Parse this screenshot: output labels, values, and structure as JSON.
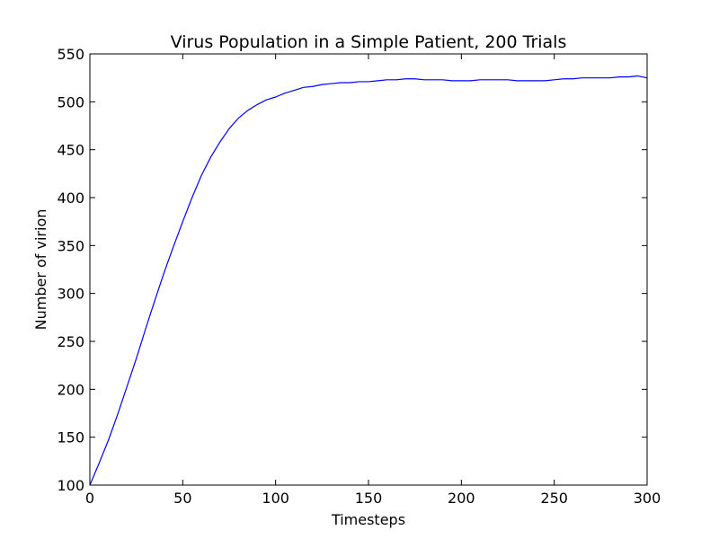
{
  "chart_data": {
    "type": "line",
    "title": "Virus Population in a Simple Patient, 200 Trials",
    "xlabel": "Timesteps",
    "ylabel": "Number of virion",
    "xlim": [
      0,
      300
    ],
    "ylim": [
      100,
      550
    ],
    "xticks": [
      0,
      50,
      100,
      150,
      200,
      250,
      300
    ],
    "yticks": [
      100,
      150,
      200,
      250,
      300,
      350,
      400,
      450,
      500,
      550
    ],
    "grid": false,
    "line_color": "#0000ff",
    "series": [
      {
        "x": [
          0,
          5,
          10,
          15,
          20,
          25,
          30,
          35,
          40,
          45,
          50,
          55,
          60,
          65,
          70,
          75,
          80,
          85,
          90,
          95,
          100,
          105,
          110,
          115,
          120,
          125,
          130,
          135,
          140,
          145,
          150,
          155,
          160,
          165,
          170,
          175,
          180,
          185,
          190,
          195,
          200,
          205,
          210,
          215,
          220,
          225,
          230,
          235,
          240,
          245,
          250,
          255,
          260,
          265,
          270,
          275,
          280,
          285,
          290,
          295,
          300
        ],
        "y": [
          100,
          123,
          147,
          174,
          203,
          232,
          263,
          293,
          322,
          349,
          375,
          400,
          423,
          442,
          458,
          472,
          483,
          491,
          497,
          502,
          505,
          509,
          512,
          515,
          516,
          518,
          519,
          520,
          520,
          521,
          521,
          522,
          523,
          523,
          524,
          524,
          523,
          523,
          523,
          522,
          522,
          522,
          523,
          523,
          523,
          523,
          522,
          522,
          522,
          522,
          523,
          524,
          524,
          525,
          525,
          525,
          525,
          526,
          526,
          527,
          525
        ]
      }
    ]
  }
}
